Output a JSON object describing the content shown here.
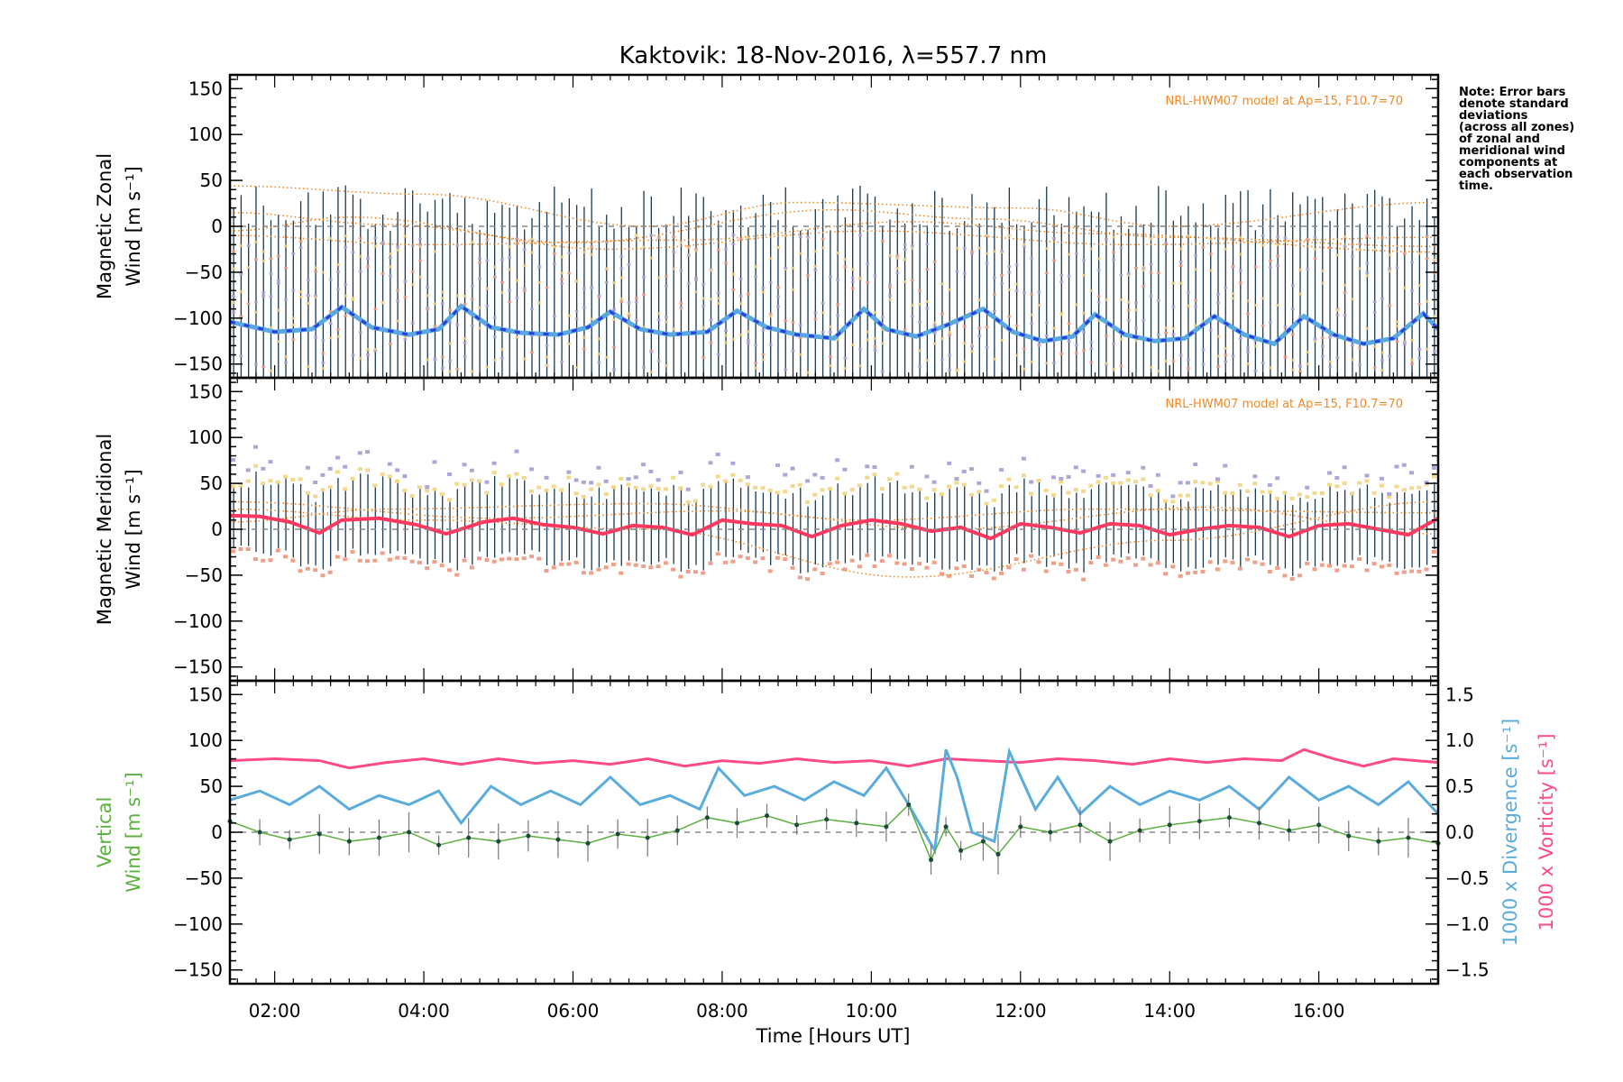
{
  "title": "Kaktovik: 18-Nov-2016, λ=557.7 nm",
  "note_lines": [
    "Note: Error bars",
    "denote standard",
    "deviations",
    "(across all zones)",
    "of zonal and",
    "meridional wind",
    "components at",
    "each observation",
    "time."
  ],
  "colors": {
    "axis": "#000000",
    "error_bar": "#1a3a52",
    "zone_scatter_1": "#f2d98c",
    "zone_scatter_2": "#b0a6d6",
    "zone_scatter_3": "#f0a088",
    "model": "#f08a28",
    "zonal_mean_dark": "#2a3de0",
    "zonal_mean_light": "#5aa8e0",
    "meridional_mean": "#ff3860",
    "vertical_wind": "#5cb040",
    "vertical_points": "#1a4a3a",
    "divergence": "#5aacdc",
    "vorticity": "#ff4a8a",
    "zero_line": "#888888"
  },
  "chart_data": [
    {
      "type": "line",
      "panel": "zonal",
      "ylabel": [
        "Magnetic Zonal",
        "Wind [m s⁻¹]"
      ],
      "ylim": [
        -165,
        165
      ],
      "yticks": [
        -150,
        -100,
        -50,
        0,
        50,
        100,
        150
      ],
      "ytick_labels": [
        "−150",
        "−100",
        "−50",
        "0",
        "50",
        "100",
        "150"
      ],
      "model_label": "NRL-HWM07 model at Ap=15, F10.7=70",
      "mean_x": [
        1.4,
        2.0,
        2.5,
        2.9,
        3.3,
        3.8,
        4.2,
        4.5,
        4.9,
        5.3,
        5.8,
        6.2,
        6.5,
        6.9,
        7.3,
        7.8,
        8.2,
        8.6,
        9.0,
        9.5,
        9.9,
        10.2,
        10.6,
        11.0,
        11.5,
        11.9,
        12.3,
        12.7,
        13.0,
        13.4,
        13.8,
        14.2,
        14.6,
        15.0,
        15.4,
        15.8,
        16.2,
        16.6,
        17.0,
        17.4,
        17.6
      ],
      "mean_y": [
        -104,
        -115,
        -112,
        -88,
        -110,
        -118,
        -112,
        -87,
        -110,
        -116,
        -118,
        -110,
        -93,
        -112,
        -118,
        -115,
        -92,
        -110,
        -118,
        -122,
        -90,
        -112,
        -120,
        -108,
        -90,
        -115,
        -125,
        -120,
        -96,
        -118,
        -125,
        -122,
        -98,
        -118,
        -128,
        -98,
        -118,
        -128,
        -122,
        -95,
        -112
      ],
      "model_curves": [
        {
          "x": [
            1.4,
            4.0,
            7.0,
            9.0,
            12.0,
            14.0,
            17.6
          ],
          "y": [
            44,
            35,
            0,
            26,
            20,
            0,
            26
          ]
        },
        {
          "x": [
            1.4,
            3.5,
            6.0,
            9.5,
            11.5,
            14.0,
            17.6
          ],
          "y": [
            15,
            2,
            -18,
            18,
            8,
            -12,
            -22
          ]
        },
        {
          "x": [
            1.4,
            4.0,
            7.5,
            10.5,
            13.0,
            17.6
          ],
          "y": [
            -10,
            -20,
            -15,
            5,
            -8,
            -28
          ]
        },
        {
          "x": [
            1.4,
            3.0,
            6.5,
            10.0,
            13.5,
            17.6
          ],
          "y": [
            -5,
            10,
            -25,
            -5,
            -20,
            -12
          ]
        }
      ]
    },
    {
      "type": "line",
      "panel": "meridional",
      "ylabel": [
        "Magnetic Meridional",
        "Wind [m s⁻¹]"
      ],
      "ylim": [
        -165,
        165
      ],
      "yticks": [
        -150,
        -100,
        -50,
        0,
        50,
        100,
        150
      ],
      "ytick_labels": [
        "−150",
        "−100",
        "−50",
        "0",
        "50",
        "100",
        "150"
      ],
      "model_label": "NRL-HWM07 model at Ap=15, F10.7=70",
      "mean_x": [
        1.4,
        1.8,
        2.2,
        2.6,
        2.9,
        3.4,
        3.9,
        4.3,
        4.8,
        5.2,
        5.6,
        6.0,
        6.4,
        6.8,
        7.2,
        7.6,
        8.0,
        8.4,
        8.8,
        9.2,
        9.6,
        10.0,
        10.4,
        10.8,
        11.2,
        11.6,
        12.0,
        12.4,
        12.8,
        13.2,
        13.6,
        14.0,
        14.4,
        14.8,
        15.2,
        15.6,
        16.0,
        16.4,
        16.8,
        17.2,
        17.6
      ],
      "mean_y": [
        15,
        14,
        8,
        -4,
        10,
        12,
        5,
        -5,
        8,
        12,
        5,
        2,
        -5,
        4,
        2,
        -6,
        10,
        6,
        4,
        -8,
        4,
        10,
        6,
        -2,
        2,
        -10,
        6,
        2,
        -4,
        6,
        4,
        -6,
        0,
        4,
        2,
        -8,
        4,
        6,
        0,
        -6,
        12
      ],
      "model_curves": [
        {
          "x": [
            1.4,
            4.0,
            7.0,
            10.5,
            14.0,
            17.6
          ],
          "y": [
            22,
            10,
            0,
            -52,
            -12,
            30
          ]
        },
        {
          "x": [
            1.4,
            3.5,
            7.0,
            10.0,
            13.0,
            17.6
          ],
          "y": [
            8,
            22,
            28,
            10,
            22,
            18
          ]
        },
        {
          "x": [
            1.4,
            5.0,
            8.0,
            11.0,
            14.5,
            17.6
          ],
          "y": [
            30,
            12,
            20,
            0,
            24,
            -5
          ]
        }
      ]
    },
    {
      "type": "line",
      "panel": "vertical",
      "ylabel": [
        "Vertical",
        "Wind [m s⁻¹]"
      ],
      "y2label_divergence": "1000 x Divergence [s⁻¹]",
      "y2label_vorticity": "1000 x Vorticity [s⁻¹]",
      "ylim": [
        -165,
        165
      ],
      "y2lim": [
        -1.65,
        1.65
      ],
      "yticks": [
        -150,
        -100,
        -50,
        0,
        50,
        100,
        150
      ],
      "ytick_labels": [
        "−150",
        "−100",
        "−50",
        "0",
        "50",
        "100",
        "150"
      ],
      "y2ticks": [
        -1.5,
        -1.0,
        -0.5,
        0.0,
        0.5,
        1.0,
        1.5
      ],
      "y2tick_labels": [
        "−1.5",
        "−1.0",
        "−0.5",
        "0.0",
        "0.5",
        "1.0",
        "1.5"
      ],
      "xlabel": "Time [Hours UT]",
      "xlim": [
        1.4,
        17.6
      ],
      "xticks": [
        2,
        4,
        6,
        8,
        10,
        12,
        14,
        16
      ],
      "xtick_labels": [
        "02:00",
        "04:00",
        "06:00",
        "08:00",
        "10:00",
        "12:00",
        "14:00",
        "16:00"
      ],
      "vertical_x": [
        1.4,
        1.8,
        2.2,
        2.6,
        3.0,
        3.4,
        3.8,
        4.2,
        4.6,
        5.0,
        5.4,
        5.8,
        6.2,
        6.6,
        7.0,
        7.4,
        7.8,
        8.2,
        8.6,
        9.0,
        9.4,
        9.8,
        10.2,
        10.5,
        10.8,
        11.0,
        11.2,
        11.5,
        11.7,
        12.0,
        12.4,
        12.8,
        13.2,
        13.6,
        14.0,
        14.4,
        14.8,
        15.2,
        15.6,
        16.0,
        16.4,
        16.8,
        17.2,
        17.6
      ],
      "vertical_y": [
        12,
        0,
        -8,
        -2,
        -10,
        -6,
        0,
        -14,
        -6,
        -10,
        -4,
        -8,
        -12,
        -2,
        -6,
        2,
        16,
        10,
        18,
        8,
        14,
        10,
        6,
        30,
        -30,
        6,
        -20,
        -10,
        -24,
        6,
        0,
        8,
        -10,
        2,
        8,
        12,
        16,
        10,
        2,
        8,
        -4,
        -10,
        -6,
        -12
      ],
      "divergence_x": [
        1.4,
        1.8,
        2.2,
        2.6,
        3.0,
        3.4,
        3.8,
        4.2,
        4.5,
        4.9,
        5.3,
        5.7,
        6.1,
        6.5,
        6.9,
        7.3,
        7.7,
        7.95,
        8.3,
        8.7,
        9.1,
        9.5,
        9.9,
        10.2,
        10.5,
        10.85,
        11.0,
        11.15,
        11.35,
        11.65,
        11.85,
        12.2,
        12.5,
        12.8,
        13.2,
        13.6,
        14.0,
        14.4,
        14.8,
        15.2,
        15.6,
        16.0,
        16.4,
        16.8,
        17.2,
        17.6
      ],
      "divergence_y": [
        0.35,
        0.45,
        0.3,
        0.5,
        0.25,
        0.4,
        0.3,
        0.45,
        0.1,
        0.5,
        0.3,
        0.45,
        0.3,
        0.6,
        0.3,
        0.4,
        0.25,
        0.7,
        0.4,
        0.5,
        0.35,
        0.55,
        0.4,
        0.7,
        0.3,
        -0.2,
        0.9,
        0.6,
        0.0,
        -0.1,
        0.88,
        0.25,
        0.6,
        0.2,
        0.5,
        0.3,
        0.45,
        0.35,
        0.5,
        0.25,
        0.6,
        0.35,
        0.5,
        0.3,
        0.55,
        0.2
      ],
      "vorticity_x": [
        1.4,
        2.0,
        2.6,
        3.0,
        3.5,
        4.0,
        4.5,
        5.0,
        5.5,
        6.0,
        6.5,
        7.0,
        7.5,
        8.0,
        8.5,
        9.0,
        9.5,
        10.0,
        10.5,
        11.0,
        11.5,
        12.0,
        12.5,
        13.0,
        13.5,
        14.0,
        14.5,
        15.0,
        15.5,
        15.8,
        16.2,
        16.6,
        17.0,
        17.6
      ],
      "vorticity_y": [
        0.78,
        0.8,
        0.78,
        0.7,
        0.76,
        0.8,
        0.74,
        0.8,
        0.75,
        0.78,
        0.74,
        0.8,
        0.72,
        0.78,
        0.75,
        0.8,
        0.76,
        0.78,
        0.72,
        0.8,
        0.78,
        0.76,
        0.8,
        0.78,
        0.74,
        0.8,
        0.76,
        0.8,
        0.78,
        0.9,
        0.8,
        0.72,
        0.8,
        0.76
      ]
    }
  ]
}
